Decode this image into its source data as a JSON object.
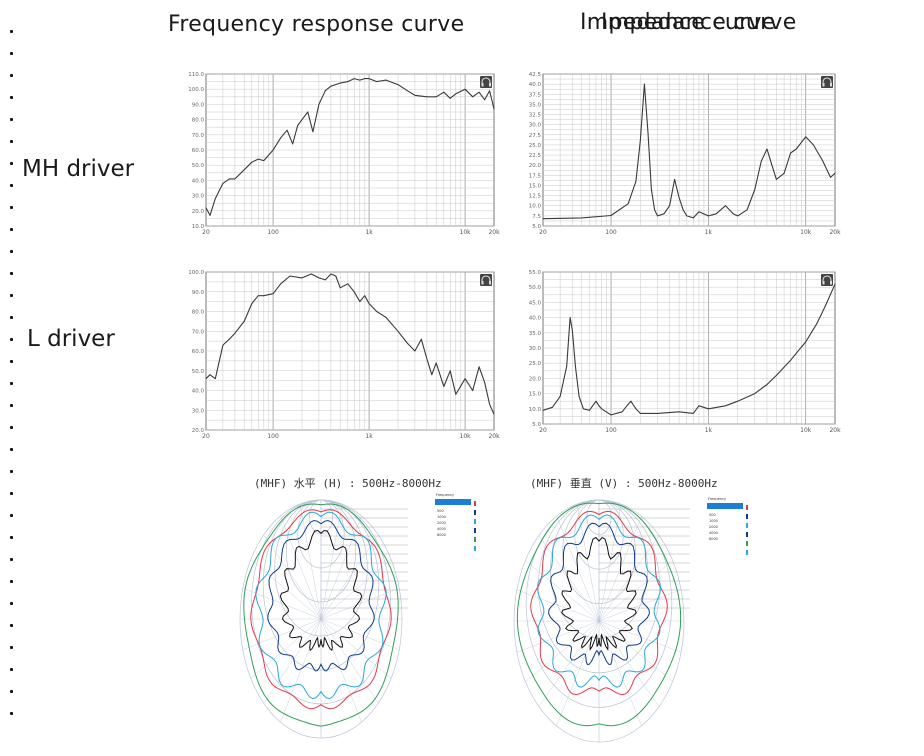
{
  "headers": {
    "left": "Frequency response curve",
    "right_overlapped": [
      "Impedance curve",
      "Impedance curve"
    ]
  },
  "rows": [
    "MH driver",
    "L driver"
  ],
  "chart_data": [
    {
      "type": "line",
      "name": "MH driver frequency response",
      "xscale": "log",
      "xlim": [
        20,
        20000
      ],
      "ylim": [
        10,
        110
      ],
      "xticks": [
        "20",
        "100",
        "1k",
        "10k",
        "20k"
      ],
      "yticks": [
        "110.0",
        "100.0",
        "90.0",
        "80.0",
        "70.0",
        "60.0",
        "50.0",
        "40.0",
        "30.0",
        "20.0",
        "10.0"
      ],
      "x": [
        20,
        22,
        25,
        30,
        35,
        40,
        50,
        60,
        70,
        80,
        100,
        120,
        140,
        160,
        180,
        200,
        230,
        260,
        300,
        350,
        400,
        500,
        600,
        700,
        800,
        900,
        1000,
        1200,
        1500,
        2000,
        2500,
        3000,
        4000,
        5000,
        6000,
        7000,
        8000,
        10000,
        12000,
        14000,
        16000,
        18000,
        20000
      ],
      "y": [
        22,
        17,
        28,
        38,
        41,
        41,
        47,
        52,
        54,
        53,
        60,
        68,
        73,
        64,
        76,
        80,
        85,
        72,
        90,
        99,
        102,
        104,
        105,
        107,
        106,
        107,
        107,
        105,
        106,
        103,
        99,
        96,
        95,
        95,
        98,
        94,
        97,
        100,
        95,
        98,
        93,
        99,
        87
      ]
    },
    {
      "type": "line",
      "name": "MH driver impedance",
      "xscale": "log",
      "xlim": [
        20,
        20000
      ],
      "ylim": [
        5,
        42.5
      ],
      "xticks": [
        "20",
        "100",
        "1k",
        "10k",
        "20k"
      ],
      "yticks": [
        "42.5",
        "40.0",
        "37.5",
        "35.0",
        "32.5",
        "30.0",
        "27.5",
        "25.0",
        "22.5",
        "20.0",
        "17.5",
        "15.0",
        "12.5",
        "10.0",
        "7.5",
        "5.0"
      ],
      "x": [
        20,
        50,
        100,
        150,
        180,
        200,
        220,
        240,
        260,
        280,
        300,
        350,
        400,
        450,
        500,
        550,
        600,
        700,
        800,
        1000,
        1200,
        1500,
        1800,
        2000,
        2500,
        3000,
        3500,
        4000,
        4500,
        5000,
        6000,
        7000,
        8000,
        10000,
        12000,
        15000,
        18000,
        20000
      ],
      "y": [
        6.8,
        7.0,
        7.6,
        10.5,
        16,
        26,
        40,
        28,
        14,
        9,
        7.5,
        8,
        10,
        16.5,
        12,
        9,
        7.5,
        7,
        8.5,
        7.5,
        8,
        10,
        8,
        7.5,
        9,
        14,
        21,
        24,
        20,
        16.5,
        18,
        23,
        24,
        27,
        25,
        21,
        17,
        18
      ]
    },
    {
      "type": "line",
      "name": "L driver frequency response",
      "xscale": "log",
      "xlim": [
        20,
        20000
      ],
      "ylim": [
        20,
        100
      ],
      "xticks": [
        "20",
        "100",
        "1k",
        "10k",
        "20k"
      ],
      "yticks": [
        "100.0",
        "90.0",
        "80.0",
        "70.0",
        "60.0",
        "50.0",
        "40.0",
        "30.0",
        "20.0"
      ],
      "x": [
        20,
        22,
        25,
        30,
        35,
        40,
        50,
        60,
        70,
        80,
        100,
        120,
        150,
        200,
        250,
        300,
        350,
        400,
        450,
        500,
        600,
        700,
        800,
        900,
        1000,
        1200,
        1500,
        2000,
        2500,
        3000,
        3500,
        4000,
        4500,
        5000,
        6000,
        7000,
        8000,
        10000,
        12000,
        14000,
        16000,
        18000,
        20000
      ],
      "y": [
        46,
        48,
        46,
        63,
        66,
        69,
        75,
        84,
        88,
        88,
        89,
        94,
        98,
        97,
        99,
        97,
        96,
        99,
        98,
        92,
        94,
        90,
        85,
        88,
        84,
        80,
        77,
        70,
        64,
        60,
        66,
        56,
        48,
        54,
        42,
        50,
        38,
        46,
        40,
        52,
        44,
        33,
        28
      ]
    },
    {
      "type": "line",
      "name": "L driver impedance",
      "xscale": "log",
      "xlim": [
        20,
        20000
      ],
      "ylim": [
        5,
        55
      ],
      "xticks": [
        "20",
        "100",
        "1k",
        "10k",
        "20k"
      ],
      "yticks": [
        "55.0",
        "50.0",
        "45.0",
        "40.0",
        "35.0",
        "30.0",
        "25.0",
        "20.0",
        "15.0",
        "10.0",
        "5.0"
      ],
      "x": [
        20,
        25,
        30,
        35,
        38,
        40,
        43,
        47,
        52,
        60,
        70,
        75,
        80,
        100,
        130,
        150,
        160,
        180,
        200,
        300,
        500,
        700,
        800,
        1000,
        1500,
        2000,
        3000,
        4000,
        5000,
        7000,
        10000,
        13000,
        16000,
        20000
      ],
      "y": [
        9.5,
        10.5,
        14,
        24,
        40,
        36,
        24,
        14,
        10,
        9.5,
        12.5,
        11,
        10,
        8,
        9,
        11.5,
        12.5,
        10,
        8.5,
        8.5,
        9,
        8.5,
        11,
        10,
        11,
        12.5,
        15,
        18,
        21,
        26,
        32,
        38,
        44,
        51
      ]
    },
    {
      "type": "polar",
      "name": "MHF horizontal directivity",
      "title": "(MHF) 水平 (H) : 500Hz-8000Hz",
      "legend": {
        "title": "Frequency",
        "entries": [
          "500",
          "1000",
          "2000",
          "4000",
          "8000"
        ]
      }
    },
    {
      "type": "polar",
      "name": "MHF vertical directivity",
      "title": "(MHF) 垂直 (V) : 500Hz-8000Hz",
      "legend": {
        "title": "Frequency",
        "entries": [
          "500",
          "1000",
          "2000",
          "4000",
          "8000"
        ]
      }
    }
  ],
  "colors": {
    "curve": "#3a3a3a",
    "grid": "#c8c8c8",
    "grid_major": "#9a9a9a",
    "polar_grid": "#b9c3d6",
    "series": [
      "#0e3b8c",
      "#e13b4b",
      "#2aa8d8",
      "#2f9e5a",
      "#111111"
    ],
    "legend_bar": "#1a7fd4"
  },
  "icons": [
    "headphone-icon"
  ]
}
